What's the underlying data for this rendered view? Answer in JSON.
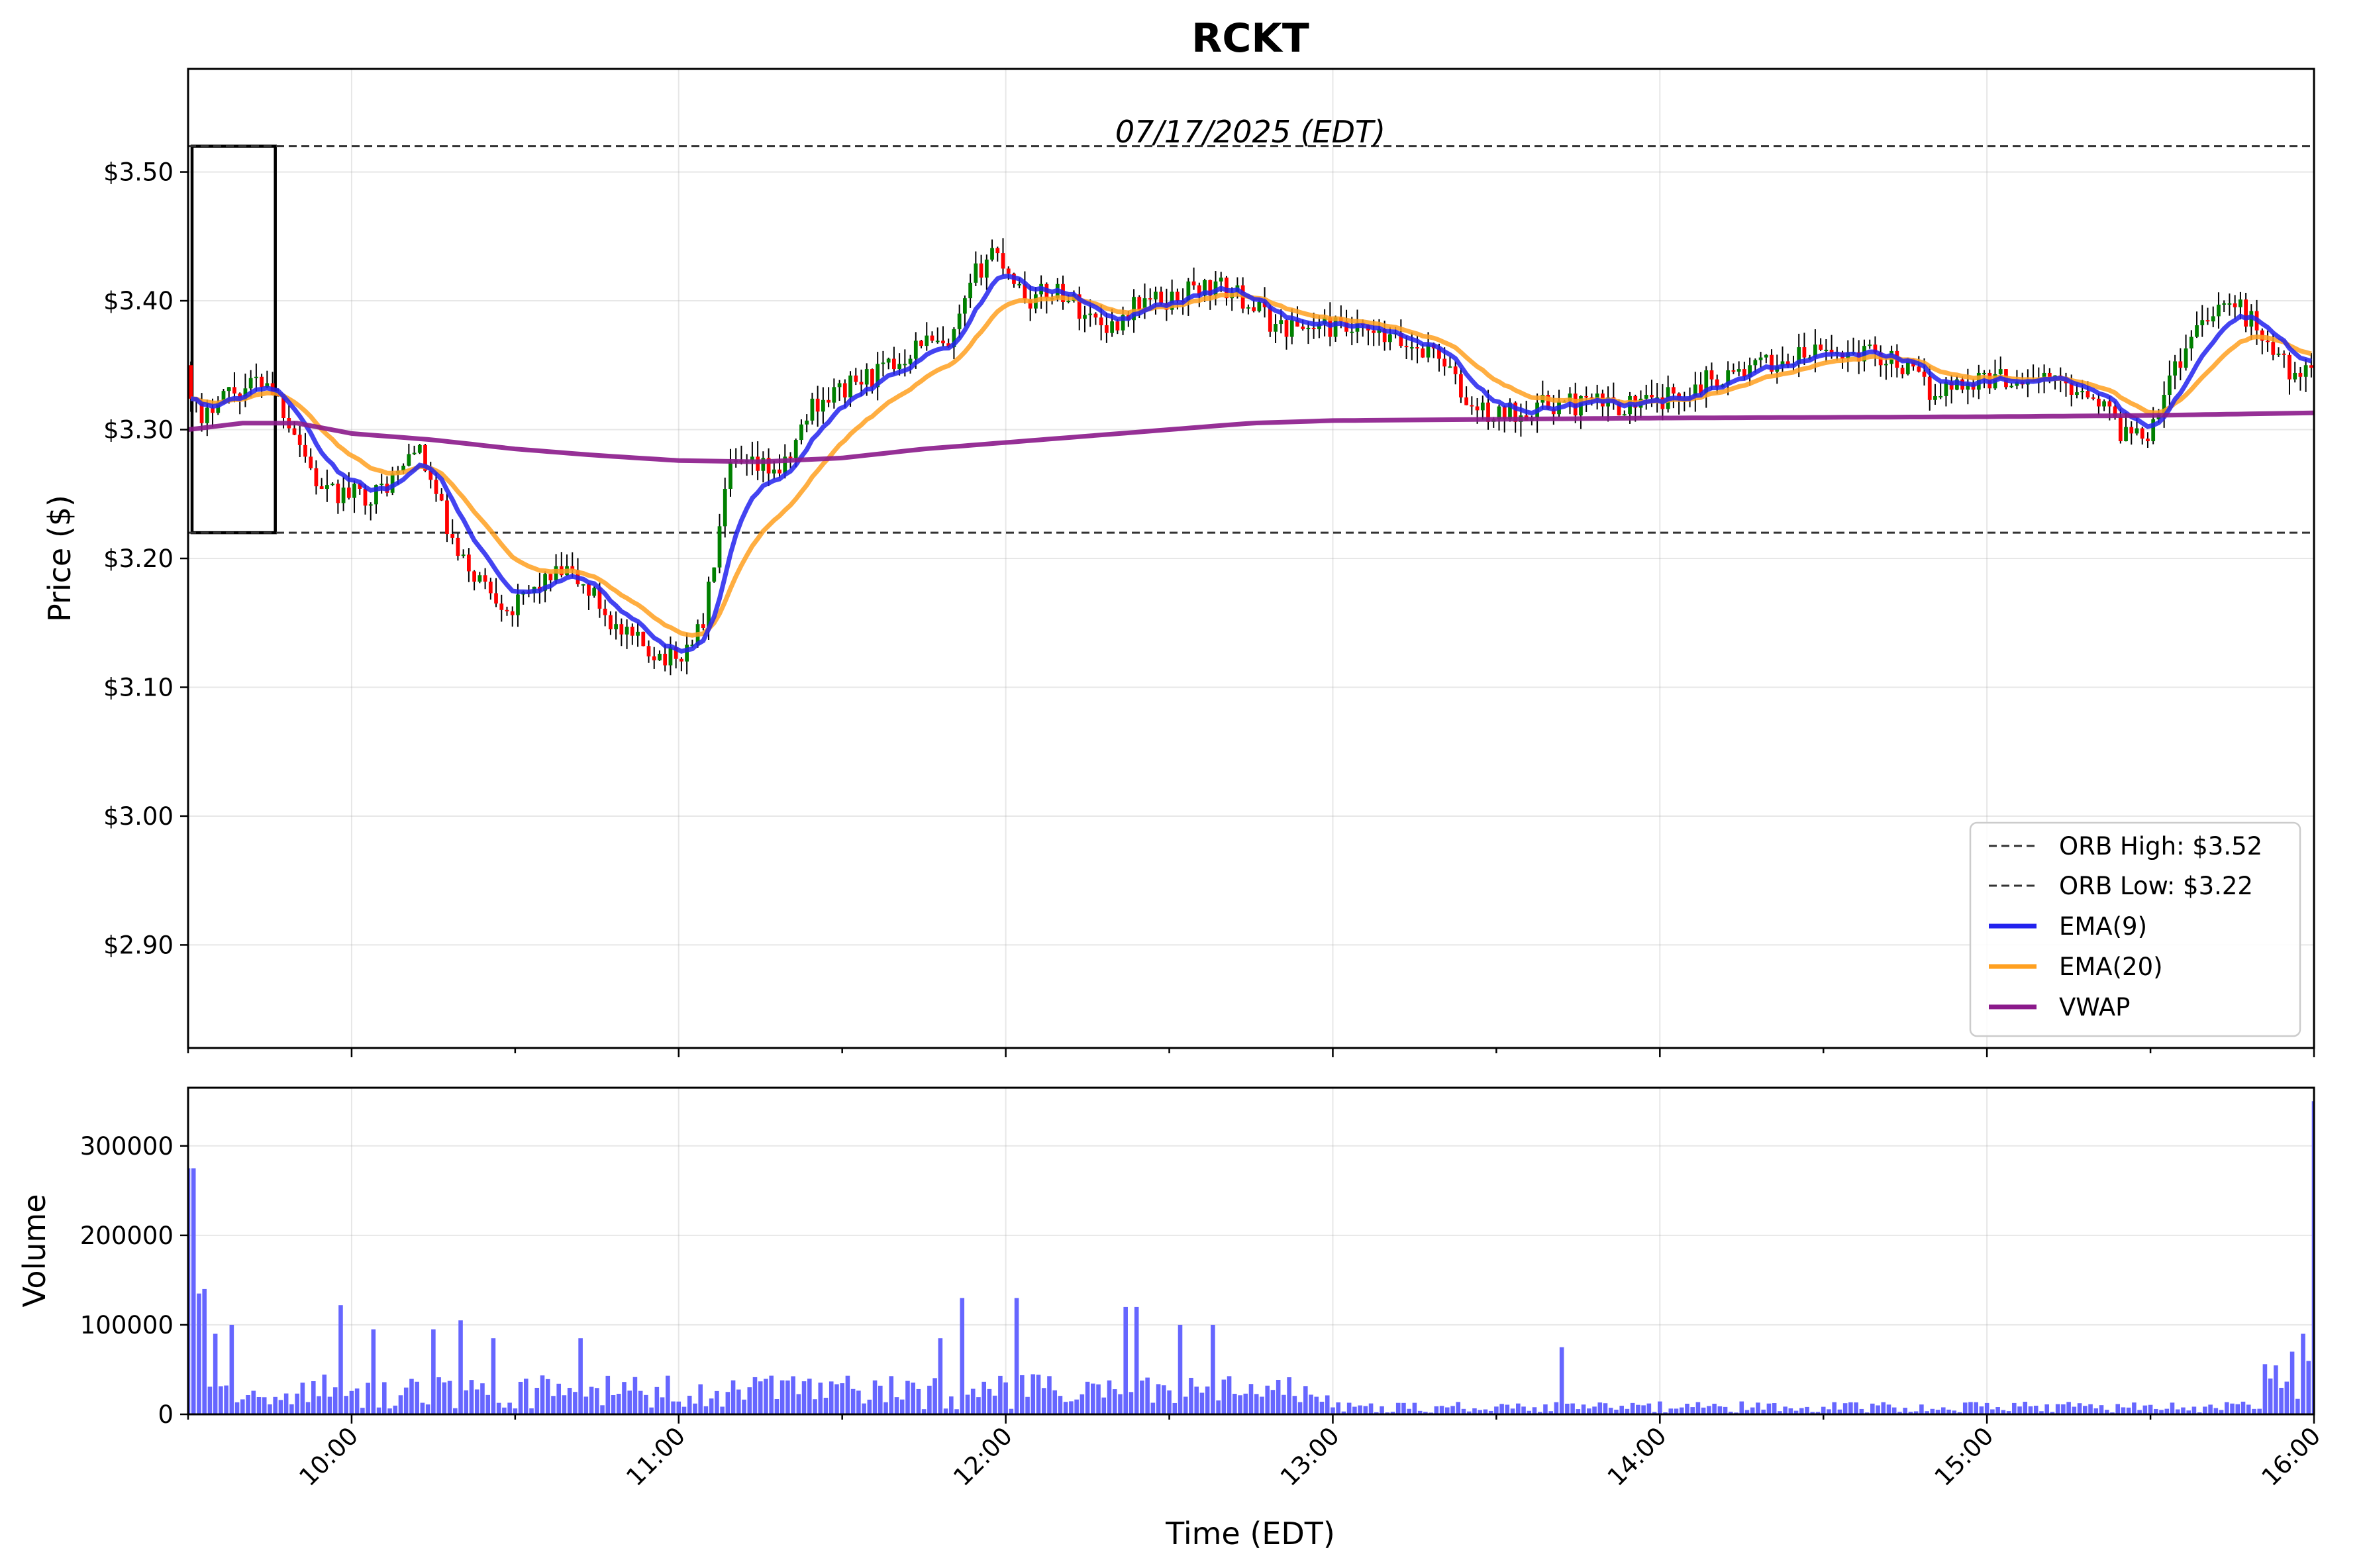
{
  "chart_data": {
    "type": "candlestick",
    "title": "RCKT",
    "subtitle": "07/17/2025 (EDT)",
    "xlabel": "Time (EDT)",
    "time_range": [
      "09:30",
      "16:00"
    ],
    "bar_interval_minutes": 1,
    "x_ticks": [
      "10:00",
      "11:00",
      "12:00",
      "13:00",
      "14:00",
      "15:00",
      "16:00"
    ],
    "price_panel": {
      "ylabel": "Price ($)",
      "ylim": [
        2.82,
        3.58
      ],
      "y_ticks": [
        "$2.90",
        "$3.00",
        "$3.10",
        "$3.20",
        "$3.30",
        "$3.40",
        "$3.50"
      ],
      "grid": true,
      "legend_position": "lower-right",
      "opening_range_box": {
        "start": "09:30",
        "end": "09:46",
        "high": 3.52,
        "low": 3.22
      },
      "orb_high": {
        "label": "ORB High: $3.52",
        "value": 3.52
      },
      "orb_low": {
        "label": "ORB Low: $3.22",
        "value": 3.22
      },
      "up_color": "#008000",
      "down_color": "#ff0000",
      "price_anchors": [
        [
          "09:30",
          3.35
        ],
        [
          "09:33",
          3.3
        ],
        [
          "09:36",
          3.33
        ],
        [
          "09:40",
          3.33
        ],
        [
          "09:45",
          3.34
        ],
        [
          "09:50",
          3.3
        ],
        [
          "09:55",
          3.25
        ],
        [
          "10:00",
          3.25
        ],
        [
          "10:05",
          3.25
        ],
        [
          "10:10",
          3.27
        ],
        [
          "10:12",
          3.29
        ],
        [
          "10:15",
          3.26
        ],
        [
          "10:20",
          3.2
        ],
        [
          "10:25",
          3.18
        ],
        [
          "10:30",
          3.16
        ],
        [
          "10:35",
          3.18
        ],
        [
          "10:40",
          3.19
        ],
        [
          "10:45",
          3.17
        ],
        [
          "10:50",
          3.14
        ],
        [
          "10:55",
          3.13
        ],
        [
          "11:00",
          3.12
        ],
        [
          "11:05",
          3.15
        ],
        [
          "11:10",
          3.27
        ],
        [
          "11:15",
          3.27
        ],
        [
          "11:20",
          3.27
        ],
        [
          "11:25",
          3.32
        ],
        [
          "11:30",
          3.33
        ],
        [
          "11:35",
          3.34
        ],
        [
          "11:40",
          3.35
        ],
        [
          "11:45",
          3.37
        ],
        [
          "11:50",
          3.36
        ],
        [
          "11:55",
          3.42
        ],
        [
          "11:58",
          3.44
        ],
        [
          "12:00",
          3.43
        ],
        [
          "12:05",
          3.4
        ],
        [
          "12:10",
          3.41
        ],
        [
          "12:15",
          3.39
        ],
        [
          "12:20",
          3.38
        ],
        [
          "12:25",
          3.4
        ],
        [
          "12:30",
          3.4
        ],
        [
          "12:35",
          3.41
        ],
        [
          "12:40",
          3.41
        ],
        [
          "12:45",
          3.4
        ],
        [
          "12:50",
          3.38
        ],
        [
          "13:00",
          3.38
        ],
        [
          "13:10",
          3.37
        ],
        [
          "13:20",
          3.36
        ],
        [
          "13:25",
          3.32
        ],
        [
          "13:30",
          3.31
        ],
        [
          "13:40",
          3.32
        ],
        [
          "13:50",
          3.32
        ],
        [
          "14:00",
          3.32
        ],
        [
          "14:10",
          3.34
        ],
        [
          "14:20",
          3.35
        ],
        [
          "14:30",
          3.36
        ],
        [
          "14:40",
          3.36
        ],
        [
          "14:45",
          3.35
        ],
        [
          "14:50",
          3.33
        ],
        [
          "15:00",
          3.34
        ],
        [
          "15:10",
          3.34
        ],
        [
          "15:20",
          3.33
        ],
        [
          "15:25",
          3.3
        ],
        [
          "15:30",
          3.3
        ],
        [
          "15:33",
          3.33
        ],
        [
          "15:40",
          3.39
        ],
        [
          "15:45",
          3.4
        ],
        [
          "15:50",
          3.38
        ],
        [
          "15:55",
          3.35
        ],
        [
          "16:00",
          3.34
        ]
      ],
      "lines": [
        {
          "name": "EMA(9)",
          "color": "#2222ee"
        },
        {
          "name": "EMA(20)",
          "color": "#ffa020"
        },
        {
          "name": "VWAP",
          "color": "#8b1a8b",
          "anchors": [
            [
              "09:30",
              3.3
            ],
            [
              "09:40",
              3.305
            ],
            [
              "09:50",
              3.305
            ],
            [
              "10:00",
              3.297
            ],
            [
              "10:15",
              3.292
            ],
            [
              "10:30",
              3.285
            ],
            [
              "10:45",
              3.28
            ],
            [
              "11:00",
              3.276
            ],
            [
              "11:15",
              3.275
            ],
            [
              "11:30",
              3.278
            ],
            [
              "11:45",
              3.285
            ],
            [
              "12:00",
              3.29
            ],
            [
              "12:15",
              3.295
            ],
            [
              "12:30",
              3.3
            ],
            [
              "12:45",
              3.305
            ],
            [
              "13:00",
              3.307
            ],
            [
              "13:30",
              3.308
            ],
            [
              "14:00",
              3.309
            ],
            [
              "15:00",
              3.31
            ],
            [
              "15:30",
              3.311
            ],
            [
              "16:00",
              3.313
            ]
          ]
        }
      ]
    },
    "volume_panel": {
      "ylabel": "Volume",
      "ylim": [
        0,
        365000
      ],
      "y_ticks": [
        "0",
        "100000",
        "200000",
        "300000"
      ],
      "bar_color": "#6666ff",
      "grid": true,
      "notable_bars": [
        [
          "09:30",
          275000
        ],
        [
          "09:31",
          275000
        ],
        [
          "09:32",
          135000
        ],
        [
          "09:33",
          140000
        ],
        [
          "09:35",
          90000
        ],
        [
          "09:38",
          100000
        ],
        [
          "09:58",
          122000
        ],
        [
          "10:04",
          95000
        ],
        [
          "10:15",
          95000
        ],
        [
          "10:20",
          105000
        ],
        [
          "10:26",
          85000
        ],
        [
          "10:42",
          85000
        ],
        [
          "11:48",
          85000
        ],
        [
          "11:52",
          130000
        ],
        [
          "12:02",
          130000
        ],
        [
          "12:22",
          120000
        ],
        [
          "12:24",
          120000
        ],
        [
          "12:32",
          100000
        ],
        [
          "12:38",
          100000
        ],
        [
          "13:42",
          75000
        ],
        [
          "15:52",
          40000
        ],
        [
          "15:56",
          70000
        ],
        [
          "15:58",
          90000
        ],
        [
          "16:00",
          350000
        ]
      ]
    }
  }
}
